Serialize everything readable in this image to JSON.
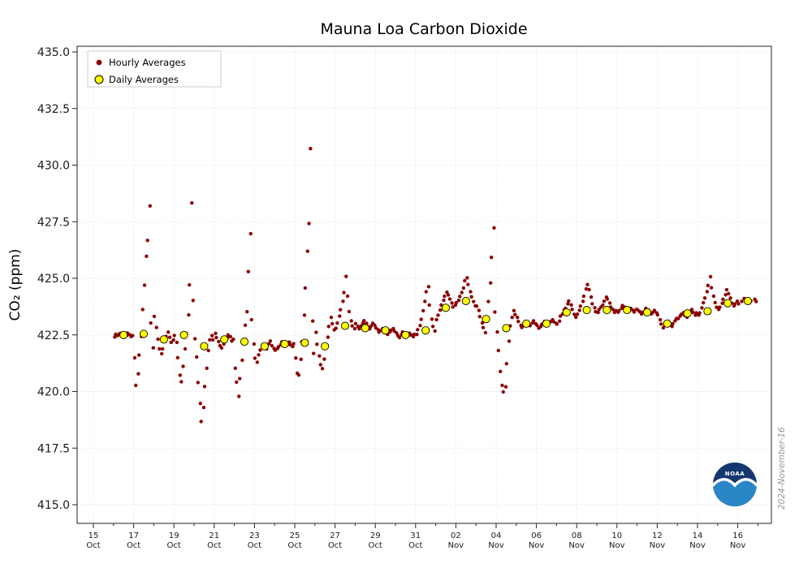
{
  "logo": {
    "label": "NOAA"
  },
  "chart_data": {
    "type": "scatter",
    "title": "Mauna Loa Carbon Dioxide",
    "ylabel": "CO₂ (ppm)",
    "xlabel": "",
    "watermark": "2024-November-16",
    "grid": true,
    "legend_position": "upper-left",
    "ylim": [
      414.2,
      435.3
    ],
    "y_ticks": [
      415.0,
      417.5,
      420.0,
      422.5,
      425.0,
      427.5,
      430.0,
      432.5,
      435.0
    ],
    "x_tick_days": [
      0,
      2,
      4,
      6,
      8,
      10,
      12,
      14,
      16,
      18,
      20,
      22,
      24,
      26,
      28,
      30,
      32
    ],
    "x_tick_labels": [
      [
        "15",
        "Oct"
      ],
      [
        "17",
        "Oct"
      ],
      [
        "19",
        "Oct"
      ],
      [
        "21",
        "Oct"
      ],
      [
        "23",
        "Oct"
      ],
      [
        "25",
        "Oct"
      ],
      [
        "27",
        "Oct"
      ],
      [
        "29",
        "Oct"
      ],
      [
        "31",
        "Oct"
      ],
      [
        "02",
        "Nov"
      ],
      [
        "04",
        "Nov"
      ],
      [
        "06",
        "Nov"
      ],
      [
        "08",
        "Nov"
      ],
      [
        "10",
        "Nov"
      ],
      [
        "12",
        "Nov"
      ],
      [
        "14",
        "Nov"
      ],
      [
        "16",
        "Nov"
      ]
    ],
    "legend": [
      {
        "label": "Hourly Averages",
        "color": "#8b0000",
        "edge": "#8b0000",
        "size": 3
      },
      {
        "label": "Daily Averages",
        "color": "#ffff00",
        "edge": "#000000",
        "size": 5
      }
    ],
    "colors": {
      "hourly": "#8b0000",
      "daily": "#ffff00"
    },
    "days": [
      {
        "date": "16 Oct",
        "day": 1,
        "avg": 422.5,
        "hourly": [
          422.4,
          422.5,
          422.45,
          422.55,
          422.6,
          422.5,
          422.4,
          422.45,
          422.55,
          422.5,
          422.45,
          422.5
        ]
      },
      {
        "date": "17 Oct",
        "day": 2,
        "avg": 422.55,
        "hourly": [
          421.5,
          420.3,
          420.8,
          421.6,
          422.4,
          423.6,
          424.7,
          426.0,
          426.7,
          428.2,
          423.0,
          421.9
        ]
      },
      {
        "date": "18 Oct",
        "day": 3,
        "avg": 422.3,
        "hourly": [
          423.3,
          422.8,
          422.3,
          421.9,
          421.7,
          421.9,
          422.2,
          422.4,
          422.6,
          422.4,
          422.2,
          422.3
        ]
      },
      {
        "date": "19 Oct",
        "day": 4,
        "avg": 422.5,
        "hourly": [
          422.5,
          422.2,
          421.5,
          420.7,
          420.4,
          421.1,
          421.9,
          422.6,
          423.4,
          424.7,
          428.3,
          424.0
        ]
      },
      {
        "date": "20 Oct",
        "day": 5,
        "avg": 422.0,
        "hourly": [
          422.3,
          421.5,
          420.4,
          419.5,
          418.7,
          419.3,
          420.2,
          421.0,
          421.8,
          422.3,
          422.5,
          422.3
        ]
      },
      {
        "date": "21 Oct",
        "day": 6,
        "avg": 422.3,
        "hourly": [
          422.6,
          422.4,
          422.2,
          422.0,
          421.9,
          422.1,
          422.3,
          422.4,
          422.5,
          422.4,
          422.2,
          422.3
        ]
      },
      {
        "date": "22 Oct",
        "day": 7,
        "avg": 422.2,
        "hourly": [
          421.0,
          420.4,
          419.8,
          420.6,
          421.4,
          422.1,
          422.9,
          423.5,
          425.3,
          427.0,
          423.2,
          422.1
        ]
      },
      {
        "date": "23 Oct",
        "day": 8,
        "avg": 422.0,
        "hourly": [
          421.5,
          421.3,
          421.6,
          421.8,
          422.0,
          422.1,
          422.0,
          421.9,
          422.1,
          422.2,
          422.0,
          421.9
        ]
      },
      {
        "date": "24 Oct",
        "day": 9,
        "avg": 422.1,
        "hourly": [
          421.8,
          421.9,
          422.0,
          422.1,
          422.2,
          422.1,
          422.0,
          422.1,
          422.2,
          422.1,
          422.0,
          422.1
        ]
      },
      {
        "date": "25 Oct",
        "day": 10,
        "avg": 422.15,
        "hourly": [
          421.5,
          420.8,
          420.7,
          421.4,
          422.2,
          423.4,
          424.6,
          426.2,
          427.4,
          430.7,
          423.1,
          421.7
        ]
      },
      {
        "date": "26 Oct",
        "day": 11,
        "avg": 422.0,
        "hourly": [
          422.6,
          422.1,
          421.6,
          421.2,
          421.0,
          421.4,
          421.9,
          422.4,
          422.9,
          423.3,
          423.0,
          422.7
        ]
      },
      {
        "date": "27 Oct",
        "day": 12,
        "avg": 422.9,
        "hourly": [
          422.8,
          423.0,
          423.3,
          423.6,
          424.0,
          424.4,
          425.1,
          424.2,
          423.5,
          423.1,
          422.9,
          422.8
        ]
      },
      {
        "date": "28 Oct",
        "day": 13,
        "avg": 422.8,
        "hourly": [
          423.0,
          422.9,
          422.8,
          422.9,
          423.0,
          423.1,
          423.0,
          422.9,
          422.8,
          422.9,
          423.0,
          422.9
        ]
      },
      {
        "date": "29 Oct",
        "day": 14,
        "avg": 422.7,
        "hourly": [
          422.8,
          422.7,
          422.6,
          422.7,
          422.8,
          422.7,
          422.6,
          422.5,
          422.6,
          422.7,
          422.8,
          422.7
        ]
      },
      {
        "date": "30 Oct",
        "day": 15,
        "avg": 422.5,
        "hourly": [
          422.6,
          422.5,
          422.4,
          422.5,
          422.6,
          422.5,
          422.4,
          422.5,
          422.6,
          422.5,
          422.4,
          422.5
        ]
      },
      {
        "date": "31 Oct",
        "day": 16,
        "avg": 422.7,
        "hourly": [
          422.5,
          422.7,
          422.9,
          423.2,
          423.6,
          424.0,
          424.4,
          424.6,
          423.8,
          423.2,
          422.9,
          422.7
        ]
      },
      {
        "date": "01 Nov",
        "day": 17,
        "avg": 423.7,
        "hourly": [
          423.2,
          423.4,
          423.6,
          423.8,
          424.0,
          424.2,
          424.4,
          424.3,
          424.1,
          423.9,
          423.7,
          423.8
        ]
      },
      {
        "date": "02 Nov",
        "day": 18,
        "avg": 424.0,
        "hourly": [
          423.9,
          424.0,
          424.2,
          424.4,
          424.6,
          424.9,
          425.0,
          424.7,
          424.4,
          424.2,
          424.0,
          423.8
        ]
      },
      {
        "date": "03 Nov",
        "day": 19,
        "avg": 423.2,
        "hourly": [
          423.8,
          423.6,
          423.3,
          423.0,
          422.8,
          422.6,
          423.2,
          424.0,
          424.8,
          425.9,
          427.2,
          423.5
        ]
      },
      {
        "date": "04 Nov",
        "day": 20,
        "avg": 422.8,
        "hourly": [
          422.6,
          421.8,
          420.9,
          420.3,
          420.0,
          420.2,
          421.2,
          422.2,
          422.9,
          423.3,
          423.6,
          423.4
        ]
      },
      {
        "date": "05 Nov",
        "day": 21,
        "avg": 423.0,
        "hourly": [
          423.3,
          423.1,
          422.9,
          422.8,
          422.9,
          423.0,
          423.1,
          423.0,
          422.9,
          423.0,
          423.1,
          423.0
        ]
      },
      {
        "date": "06 Nov",
        "day": 22,
        "avg": 423.0,
        "hourly": [
          422.9,
          422.8,
          422.9,
          423.0,
          423.1,
          423.0,
          422.9,
          423.0,
          423.1,
          423.2,
          423.1,
          423.0
        ]
      },
      {
        "date": "07 Nov",
        "day": 23,
        "avg": 423.5,
        "hourly": [
          423.0,
          423.1,
          423.3,
          423.4,
          423.6,
          423.7,
          423.9,
          424.0,
          423.8,
          423.6,
          423.4,
          423.3
        ]
      },
      {
        "date": "08 Nov",
        "day": 24,
        "avg": 423.6,
        "hourly": [
          423.4,
          423.6,
          423.8,
          424.0,
          424.2,
          424.5,
          424.7,
          424.5,
          424.2,
          423.9,
          423.7,
          423.5
        ]
      },
      {
        "date": "09 Nov",
        "day": 25,
        "avg": 423.6,
        "hourly": [
          423.5,
          423.6,
          423.7,
          423.8,
          424.0,
          424.2,
          424.1,
          423.9,
          423.7,
          423.6,
          423.5,
          423.6
        ]
      },
      {
        "date": "10 Nov",
        "day": 26,
        "avg": 423.6,
        "hourly": [
          423.5,
          423.6,
          423.7,
          423.8,
          423.7,
          423.6,
          423.5,
          423.6,
          423.7,
          423.6,
          423.5,
          423.6
        ]
      },
      {
        "date": "11 Nov",
        "day": 27,
        "avg": 423.5,
        "hourly": [
          423.6,
          423.5,
          423.4,
          423.5,
          423.6,
          423.7,
          423.6,
          423.5,
          423.4,
          423.5,
          423.6,
          423.5
        ]
      },
      {
        "date": "12 Nov",
        "day": 28,
        "avg": 423.0,
        "hourly": [
          423.4,
          423.2,
          423.0,
          422.8,
          422.9,
          423.0,
          423.1,
          423.0,
          422.9,
          423.0,
          423.1,
          423.2
        ]
      },
      {
        "date": "13 Nov",
        "day": 29,
        "avg": 423.45,
        "hourly": [
          423.2,
          423.3,
          423.4,
          423.5,
          423.4,
          423.3,
          423.4,
          423.5,
          423.6,
          423.5,
          423.4,
          423.5
        ]
      },
      {
        "date": "14 Nov",
        "day": 30,
        "avg": 423.55,
        "hourly": [
          423.4,
          423.5,
          423.7,
          423.9,
          424.1,
          424.4,
          424.7,
          425.1,
          424.6,
          424.2,
          423.9,
          423.7
        ]
      },
      {
        "date": "15 Nov",
        "day": 31,
        "avg": 423.9,
        "hourly": [
          423.6,
          423.7,
          423.9,
          424.1,
          424.3,
          424.5,
          424.3,
          424.1,
          423.9,
          423.8,
          423.9,
          424.0
        ]
      },
      {
        "date": "16 Nov",
        "day": 32,
        "avg": 424.0,
        "hourly": [
          423.9,
          424.0,
          424.1,
          424.0,
          423.9,
          424.0,
          424.1,
          424.0
        ]
      }
    ]
  }
}
